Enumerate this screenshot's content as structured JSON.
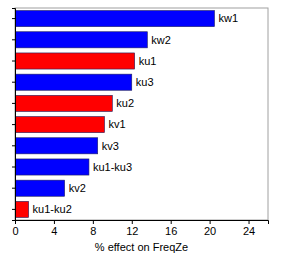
{
  "chart_data": {
    "type": "bar",
    "orientation": "horizontal",
    "x_label": "% effect on FreqZe",
    "categories": [
      "kw1",
      "kw2",
      "ku1",
      "ku3",
      "ku2",
      "kv1",
      "kv3",
      "ku1-ku3",
      "kv2",
      "ku1-ku2"
    ],
    "values": [
      20.5,
      13.6,
      12.3,
      12.0,
      10.0,
      9.2,
      8.5,
      7.6,
      5.1,
      1.4
    ],
    "colors": [
      "#0000ff",
      "#0000ff",
      "#ff0000",
      "#0000ff",
      "#ff0000",
      "#ff0000",
      "#0000ff",
      "#0000ff",
      "#0000ff",
      "#ff0000"
    ],
    "xlim": [
      0,
      26
    ],
    "xticks": [
      0,
      4,
      8,
      12,
      16,
      20,
      24
    ],
    "grid": false,
    "tick_labels": "x"
  }
}
